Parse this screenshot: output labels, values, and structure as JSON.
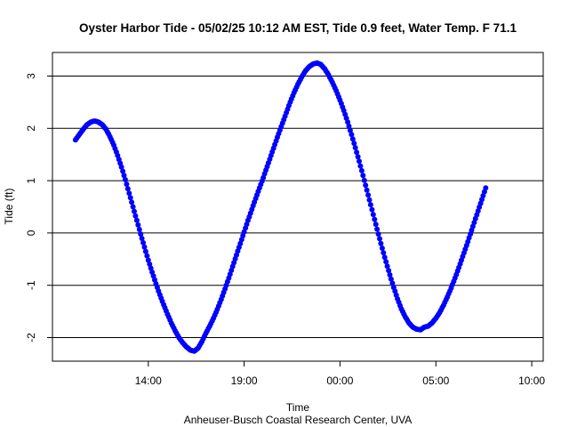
{
  "chart_data": {
    "type": "scatter",
    "title": "Oyster Harbor Tide - 05/02/25 10:12 AM EST, Tide 0.9 feet,  Water Temp. F 71.1",
    "xlabel": "Time",
    "ylabel": "Tide (ft)",
    "credit": "Anheuser-Busch Coastal Research Center, UVA",
    "x_units": "hours after midnight, 05/01/25",
    "xlim": [
      9.0,
      34.6
    ],
    "ylim": [
      -2.45,
      3.45
    ],
    "x_ticks": [
      {
        "value": 14,
        "label": "14:00"
      },
      {
        "value": 19,
        "label": "19:00"
      },
      {
        "value": 24,
        "label": "00:00"
      },
      {
        "value": 29,
        "label": "05:00"
      },
      {
        "value": 34,
        "label": "10:00"
      }
    ],
    "y_ticks": [
      {
        "value": -2,
        "label": "-2"
      },
      {
        "value": -1,
        "label": "-1"
      },
      {
        "value": 0,
        "label": "0"
      },
      {
        "value": 1,
        "label": "1"
      },
      {
        "value": 2,
        "label": "2"
      },
      {
        "value": 3,
        "label": "3"
      }
    ],
    "grid": "horizontal lines at y ticks",
    "point_color": "#0000ff",
    "series_points": [
      [
        10.2,
        1.78
      ],
      [
        10.4,
        1.88
      ],
      [
        10.6,
        1.98
      ],
      [
        10.8,
        2.07
      ],
      [
        11.0,
        2.12
      ],
      [
        11.2,
        2.14
      ],
      [
        11.4,
        2.12
      ],
      [
        11.6,
        2.07
      ],
      [
        11.8,
        1.98
      ],
      [
        12.0,
        1.84
      ],
      [
        12.2,
        1.68
      ],
      [
        12.4,
        1.48
      ],
      [
        12.6,
        1.26
      ],
      [
        12.8,
        1.02
      ],
      [
        13.0,
        0.76
      ],
      [
        13.2,
        0.5
      ],
      [
        13.4,
        0.24
      ],
      [
        13.6,
        -0.02
      ],
      [
        13.8,
        -0.27
      ],
      [
        14.0,
        -0.52
      ],
      [
        14.2,
        -0.75
      ],
      [
        14.4,
        -0.97
      ],
      [
        14.6,
        -1.18
      ],
      [
        14.8,
        -1.37
      ],
      [
        15.0,
        -1.55
      ],
      [
        15.2,
        -1.72
      ],
      [
        15.4,
        -1.87
      ],
      [
        15.6,
        -2.0
      ],
      [
        15.8,
        -2.1
      ],
      [
        16.0,
        -2.18
      ],
      [
        16.2,
        -2.24
      ],
      [
        16.4,
        -2.26
      ],
      [
        16.6,
        -2.2
      ],
      [
        16.8,
        -2.07
      ],
      [
        17.0,
        -1.92
      ],
      [
        17.2,
        -1.78
      ],
      [
        17.4,
        -1.63
      ],
      [
        17.6,
        -1.46
      ],
      [
        17.8,
        -1.27
      ],
      [
        18.0,
        -1.07
      ],
      [
        18.2,
        -0.86
      ],
      [
        18.4,
        -0.64
      ],
      [
        18.6,
        -0.42
      ],
      [
        18.8,
        -0.2
      ],
      [
        19.0,
        0.02
      ],
      [
        19.2,
        0.24
      ],
      [
        19.4,
        0.45
      ],
      [
        19.6,
        0.66
      ],
      [
        19.8,
        0.86
      ],
      [
        20.0,
        1.06
      ],
      [
        20.2,
        1.27
      ],
      [
        20.4,
        1.48
      ],
      [
        20.6,
        1.69
      ],
      [
        20.8,
        1.9
      ],
      [
        21.0,
        2.1
      ],
      [
        21.2,
        2.3
      ],
      [
        21.4,
        2.5
      ],
      [
        21.6,
        2.68
      ],
      [
        21.8,
        2.84
      ],
      [
        22.0,
        2.98
      ],
      [
        22.2,
        3.1
      ],
      [
        22.4,
        3.18
      ],
      [
        22.6,
        3.23
      ],
      [
        22.8,
        3.25
      ],
      [
        23.0,
        3.22
      ],
      [
        23.2,
        3.14
      ],
      [
        23.4,
        3.02
      ],
      [
        23.6,
        2.88
      ],
      [
        23.8,
        2.72
      ],
      [
        24.0,
        2.54
      ],
      [
        24.2,
        2.34
      ],
      [
        24.4,
        2.12
      ],
      [
        24.6,
        1.88
      ],
      [
        24.8,
        1.63
      ],
      [
        25.0,
        1.37
      ],
      [
        25.2,
        1.1
      ],
      [
        25.4,
        0.82
      ],
      [
        25.6,
        0.54
      ],
      [
        25.8,
        0.26
      ],
      [
        26.0,
        -0.02
      ],
      [
        26.2,
        -0.29
      ],
      [
        26.4,
        -0.55
      ],
      [
        26.6,
        -0.8
      ],
      [
        26.8,
        -1.04
      ],
      [
        27.0,
        -1.26
      ],
      [
        27.2,
        -1.45
      ],
      [
        27.4,
        -1.6
      ],
      [
        27.6,
        -1.72
      ],
      [
        27.8,
        -1.8
      ],
      [
        28.0,
        -1.84
      ],
      [
        28.2,
        -1.85
      ],
      [
        28.4,
        -1.8
      ],
      [
        28.6,
        -1.78
      ],
      [
        28.8,
        -1.72
      ],
      [
        29.0,
        -1.63
      ],
      [
        29.2,
        -1.52
      ],
      [
        29.4,
        -1.38
      ],
      [
        29.6,
        -1.22
      ],
      [
        29.8,
        -1.05
      ],
      [
        30.0,
        -0.86
      ],
      [
        30.2,
        -0.66
      ],
      [
        30.4,
        -0.45
      ],
      [
        30.6,
        -0.24
      ],
      [
        30.8,
        -0.02
      ],
      [
        31.0,
        0.2
      ],
      [
        31.2,
        0.42
      ],
      [
        31.4,
        0.64
      ],
      [
        31.6,
        0.86
      ]
    ]
  }
}
